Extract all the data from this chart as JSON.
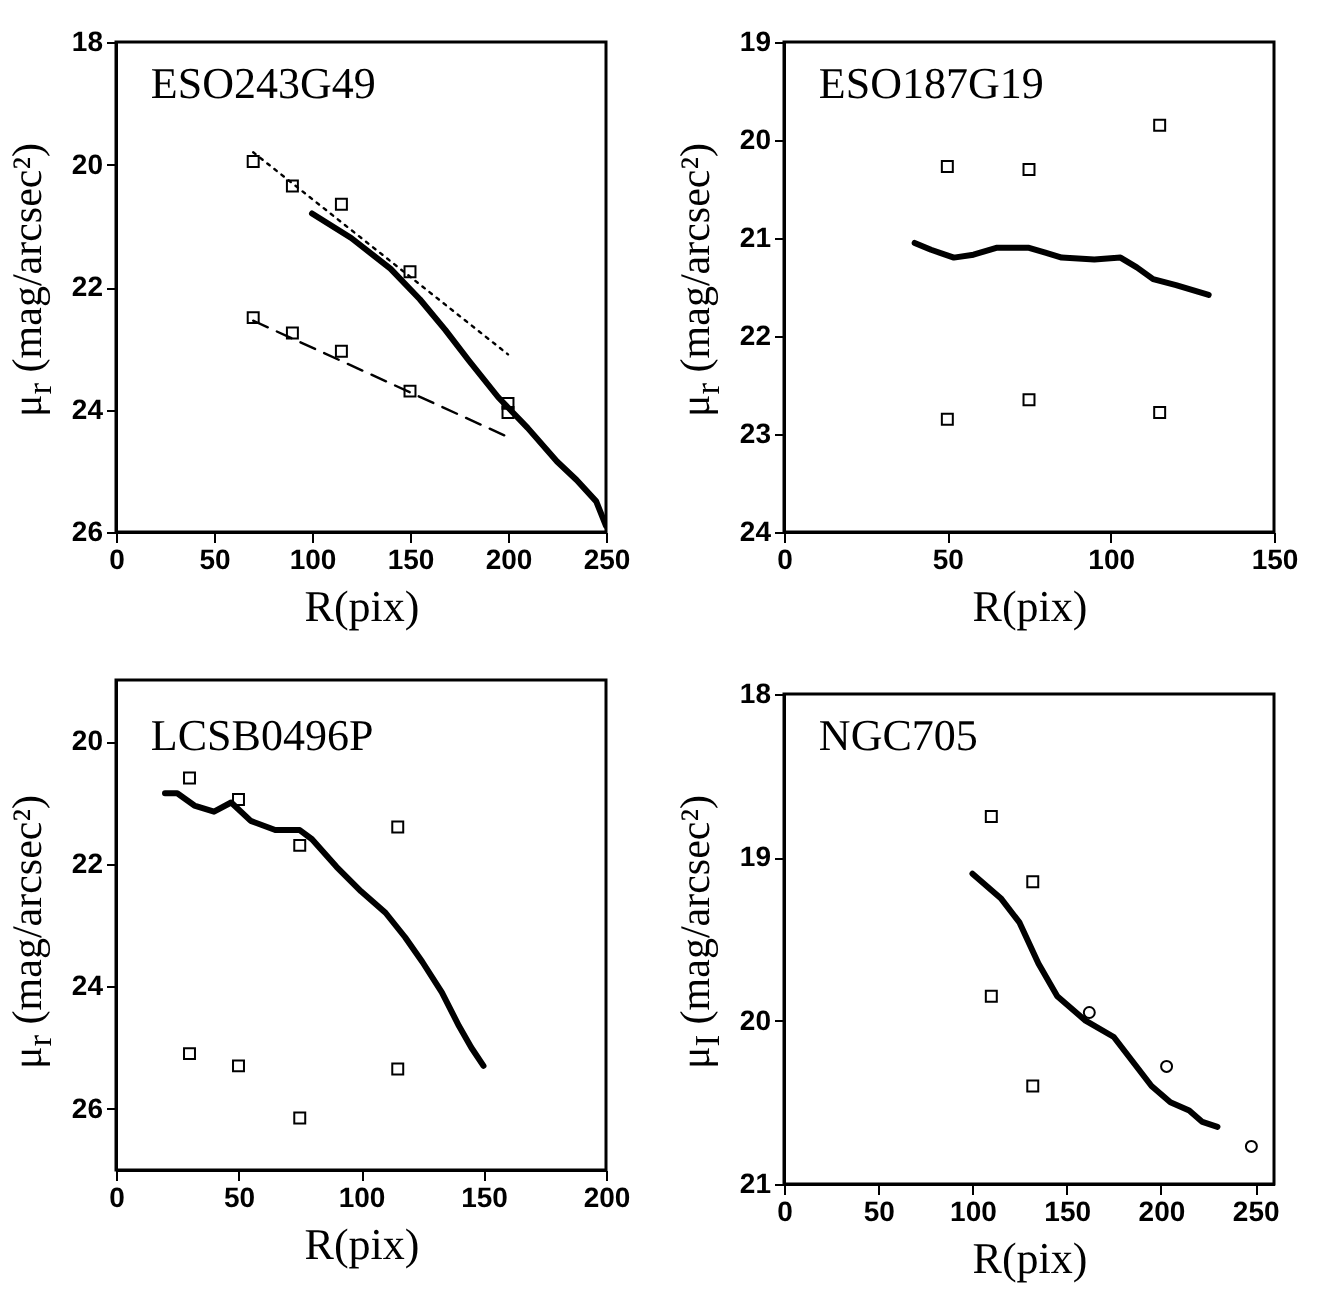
{
  "chart_data": [
    {
      "type": "scatter",
      "title": "ESO243G49",
      "xlabel": "R(pix)",
      "ylabel": "μ$_{r}$ (mag/arcsec²)",
      "xlim": [
        0,
        250
      ],
      "ylim": [
        26,
        18
      ],
      "xticks": [
        0,
        50,
        100,
        150,
        200,
        250
      ],
      "yticks": [
        18,
        20,
        22,
        24,
        26
      ],
      "grid": false,
      "series": [
        {
          "type": "line",
          "color": "#000000",
          "line_style": "solid",
          "x": [
            100,
            120,
            140,
            155,
            168,
            180,
            195,
            210,
            225,
            235,
            245,
            250
          ],
          "values": [
            20.8,
            21.2,
            21.7,
            22.2,
            22.7,
            23.2,
            23.8,
            24.3,
            24.85,
            25.15,
            25.5,
            25.9
          ]
        },
        {
          "type": "line",
          "color": "#000000",
          "line_style": "dotted",
          "x": [
            70,
            200
          ],
          "values": [
            19.8,
            23.1
          ]
        },
        {
          "type": "line",
          "color": "#000000",
          "line_style": "dashed",
          "x": [
            70,
            200
          ],
          "values": [
            22.55,
            24.45
          ]
        },
        {
          "type": "scatter",
          "marker": "square",
          "color": "#000000",
          "x": [
            70,
            90,
            115,
            150,
            200
          ],
          "values": [
            19.95,
            20.35,
            20.65,
            21.75,
            23.9
          ]
        },
        {
          "type": "scatter",
          "marker": "square",
          "color": "#000000",
          "x": [
            70,
            90,
            115,
            150,
            200
          ],
          "values": [
            22.5,
            22.75,
            23.05,
            23.7,
            24.05
          ]
        }
      ]
    },
    {
      "type": "scatter",
      "title": "ESO187G19",
      "xlabel": "R(pix)",
      "ylabel": "μ$_{r}$ (mag/arcsec²)",
      "xlim": [
        0,
        150
      ],
      "ylim": [
        24,
        19
      ],
      "xticks": [
        0,
        50,
        100,
        150
      ],
      "yticks": [
        19,
        20,
        21,
        22,
        23,
        24
      ],
      "grid": false,
      "series": [
        {
          "type": "line",
          "color": "#000000",
          "line_style": "solid",
          "x": [
            40,
            45,
            52,
            58,
            65,
            75,
            80,
            85,
            95,
            103,
            108,
            113,
            120,
            130
          ],
          "values": [
            21.05,
            21.12,
            21.2,
            21.17,
            21.1,
            21.1,
            21.15,
            21.2,
            21.22,
            21.2,
            21.3,
            21.42,
            21.48,
            21.58
          ]
        },
        {
          "type": "scatter",
          "marker": "square",
          "color": "#000000",
          "x": [
            50,
            75,
            115,
            50,
            75,
            115
          ],
          "values": [
            20.27,
            20.3,
            19.85,
            22.85,
            22.65,
            22.78
          ]
        }
      ]
    },
    {
      "type": "scatter",
      "title": "LCSB0496P",
      "xlabel": "R(pix)",
      "ylabel": "μ$_{r}$ (mag/arcsec²)",
      "xlim": [
        0,
        200
      ],
      "ylim": [
        27,
        19
      ],
      "xticks": [
        0,
        50,
        100,
        150,
        200
      ],
      "yticks": [
        20,
        22,
        24,
        26
      ],
      "grid": false,
      "series": [
        {
          "type": "line",
          "color": "#000000",
          "line_style": "solid",
          "x": [
            20,
            25,
            32,
            40,
            47,
            55,
            65,
            75,
            80,
            90,
            100,
            110,
            118,
            125,
            133,
            140,
            145,
            150
          ],
          "values": [
            20.85,
            20.85,
            21.05,
            21.15,
            21.0,
            21.3,
            21.45,
            21.45,
            21.6,
            22.05,
            22.45,
            22.8,
            23.2,
            23.6,
            24.1,
            24.65,
            25.0,
            25.3
          ]
        },
        {
          "type": "scatter",
          "marker": "square",
          "color": "#000000",
          "x": [
            30,
            50,
            75,
            115,
            30,
            50,
            75,
            115
          ],
          "values": [
            20.6,
            20.95,
            21.7,
            21.4,
            25.1,
            25.3,
            26.15,
            25.35
          ]
        }
      ]
    },
    {
      "type": "scatter",
      "title": "NGC705",
      "xlabel": "R(pix)",
      "ylabel": "μ$_{I}$ (mag/arcsec²)",
      "xlim": [
        0,
        260
      ],
      "ylim": [
        21,
        18
      ],
      "xticks": [
        0,
        50,
        100,
        150,
        200,
        250
      ],
      "yticks": [
        18,
        19,
        20,
        21
      ],
      "grid": false,
      "series": [
        {
          "type": "line",
          "color": "#000000",
          "line_style": "solid",
          "x": [
            100,
            115,
            125,
            135,
            145,
            160,
            175,
            185,
            195,
            205,
            215,
            222,
            230
          ],
          "values": [
            19.1,
            19.25,
            19.4,
            19.65,
            19.85,
            20.0,
            20.1,
            20.25,
            20.4,
            20.5,
            20.55,
            20.62,
            20.65
          ]
        },
        {
          "type": "scatter",
          "marker": "square",
          "color": "#000000",
          "x": [
            110,
            132,
            110,
            132
          ],
          "values": [
            18.75,
            19.15,
            19.85,
            20.4
          ]
        },
        {
          "type": "scatter",
          "marker": "circle",
          "color": "#000000",
          "x": [
            162,
            203,
            248
          ],
          "values": [
            19.95,
            20.28,
            20.77
          ]
        }
      ]
    }
  ]
}
